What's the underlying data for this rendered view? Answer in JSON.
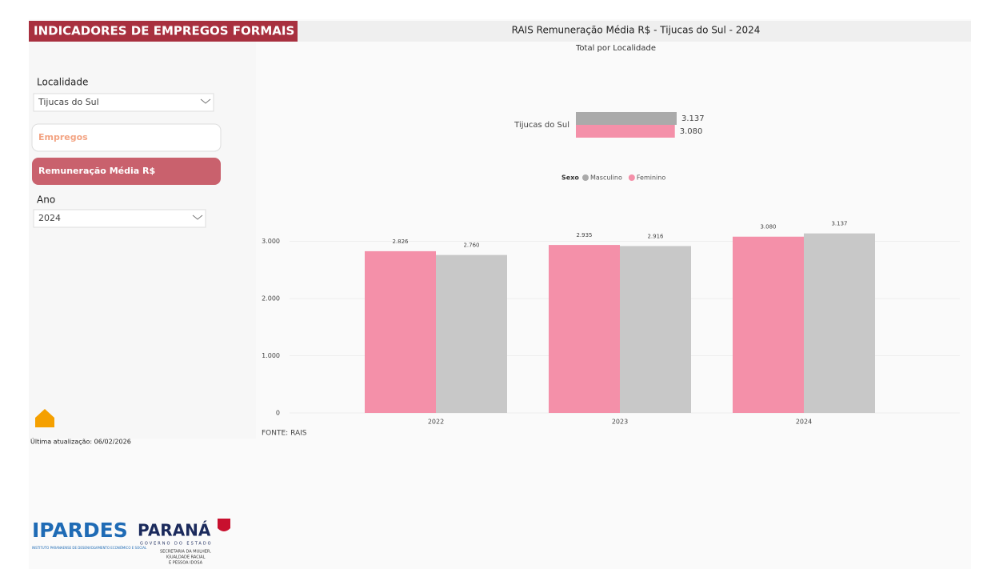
{
  "header": {
    "title": "INDICADORES DE EMPREGOS FORMAIS"
  },
  "filters": {
    "localidade_label": "Localidade",
    "localidade_value": "Tijucas do Sul",
    "buttons": [
      "Empregos",
      "Remuneração Média R$"
    ],
    "ano_label": "Ano",
    "ano_value": "2024"
  },
  "footer": {
    "update": "Última atualização: 06/02/2026",
    "source": "FONTE: RAIS"
  },
  "logos": {
    "ipardes": "IPARDES",
    "ipardes_sub": "INSTITUTO PARANAENSE DE DESENVOLVIMENTO ECONÔMICO E SOCIAL",
    "parana": "PARANÁ",
    "parana_sub": "GOVERNO DO ESTADO",
    "secretaria": [
      "SECRETARIA DA MULHER,",
      "IGUALDADE RACIAL",
      "E PESSOA IDOSA"
    ]
  },
  "chart_data": [
    {
      "type": "hbar",
      "title": "RAIS Remuneração Média R$ - Tijucas do Sul - 2024",
      "subtitle": "Total por Localidade",
      "categories": [
        "Tijucas do Sul"
      ],
      "legend_title": "Sexo",
      "series": [
        {
          "name": "Masculino",
          "color": "#aaaaaa",
          "values": [
            3137
          ],
          "value_labels": [
            "3.137"
          ]
        },
        {
          "name": "Feminino",
          "color": "#f490a9",
          "values": [
            3080
          ],
          "value_labels": [
            "3.080"
          ]
        }
      ]
    },
    {
      "type": "bar",
      "categories": [
        "2022",
        "2023",
        "2024"
      ],
      "ylim": [
        0,
        3300
      ],
      "yticks": [
        0,
        {
          "value": 1000,
          "label": "1.000"
        },
        {
          "value": 2000,
          "label": "2.000"
        },
        {
          "value": 3000,
          "label": "3.000"
        }
      ],
      "grid": true,
      "series": [
        {
          "color": "#f490a9",
          "values": [
            2826,
            2935,
            3080
          ],
          "value_labels": [
            "2.826",
            "2.935",
            "3.080"
          ]
        },
        {
          "color": "#c8c8c8",
          "values": [
            2760,
            2916,
            3137
          ],
          "value_labels": [
            "2.760",
            "2.916",
            "3.137"
          ]
        }
      ]
    }
  ]
}
